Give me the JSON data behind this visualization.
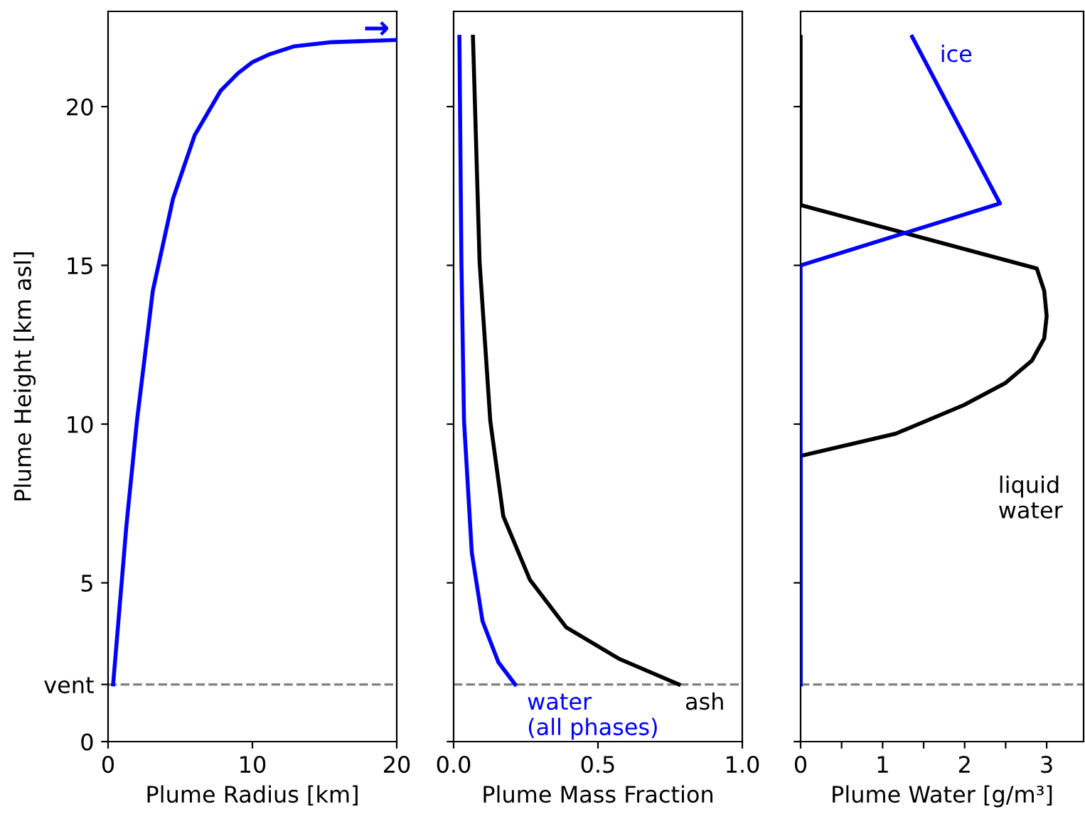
{
  "chart_data": [
    {
      "type": "line",
      "xlabel": "Plume Radius [km]",
      "ylabel": "Plume Height [km asl]",
      "xlim": [
        0,
        20
      ],
      "xticks": [
        0,
        10,
        20
      ],
      "ylim": [
        0,
        23
      ],
      "yticks": [
        0,
        {
          "value": 1.8,
          "label": "vent"
        },
        5,
        10,
        15,
        20
      ],
      "grid": false,
      "legend": false,
      "series": [
        {
          "color": "#0000ff",
          "x": [
            0.35,
            1.27,
            2.0,
            3.1,
            4.5,
            6.0,
            7.8,
            9.0,
            10.0,
            11.2,
            12.9,
            15.5,
            20.0
          ],
          "values": [
            1.8,
            6.8,
            10.1,
            14.2,
            17.1,
            19.1,
            20.5,
            21.05,
            21.4,
            21.65,
            21.9,
            22.03,
            22.1
          ]
        }
      ],
      "annotations": [
        "→"
      ],
      "ref_lines": [
        {
          "axis": "y",
          "value": 1.8,
          "color": "#808080",
          "line_style": "dashed"
        }
      ]
    },
    {
      "type": "line",
      "xlabel": "Plume Mass Fraction",
      "xlim": [
        0,
        1.0
      ],
      "xticks": [
        {
          "value": 0,
          "label": "0.0"
        },
        0.5,
        {
          "value": 1,
          "label": "1.0"
        }
      ],
      "ylim": [
        0,
        23
      ],
      "yticks": [
        0,
        5,
        10,
        15,
        20
      ],
      "tick_labels": "x",
      "grid": false,
      "legend": false,
      "series": [
        {
          "name": "water\n(all phases)",
          "color": "#0000ff",
          "x": [
            0.213,
            0.155,
            0.1,
            0.063,
            0.036,
            0.027,
            0.02
          ],
          "values": [
            1.8,
            2.5,
            3.8,
            5.95,
            10.1,
            15.1,
            22.2
          ]
        },
        {
          "name": "ash",
          "color": "#000000",
          "x": [
            0.78,
            0.575,
            0.39,
            0.264,
            0.172,
            0.127,
            0.09,
            0.067
          ],
          "values": [
            1.8,
            2.6,
            3.6,
            5.1,
            7.1,
            10.1,
            15.1,
            22.2
          ]
        }
      ],
      "ref_lines": [
        {
          "axis": "y",
          "value": 1.8,
          "color": "#808080",
          "line_style": "dashed"
        }
      ]
    },
    {
      "type": "line",
      "xlabel": "Plume Water [g/m³]",
      "xlim": [
        0,
        3.45
      ],
      "xticks": [
        0,
        {
          "value": 0.5,
          "label": null
        },
        1,
        {
          "value": 1.5,
          "label": null
        },
        2,
        {
          "value": 2.5,
          "label": null
        },
        3
      ],
      "ylim": [
        0,
        23
      ],
      "yticks": [
        0,
        5,
        10,
        15,
        20
      ],
      "tick_labels": "x",
      "grid": false,
      "legend": false,
      "series": [
        {
          "name": "liquid\nwater",
          "color": "#000000",
          "x": [
            0,
            0,
            1.16,
            1.99,
            2.5,
            2.82,
            2.97,
            3.0,
            2.97,
            2.88,
            0,
            0
          ],
          "values": [
            1.8,
            9.0,
            9.7,
            10.6,
            11.3,
            12.0,
            12.7,
            13.4,
            14.2,
            14.9,
            16.9,
            22.2
          ]
        },
        {
          "name": "ice",
          "color": "#0000ff",
          "x": [
            0,
            0,
            2.43,
            1.36
          ],
          "values": [
            1.8,
            15.0,
            16.95,
            22.2
          ]
        }
      ],
      "ref_lines": [
        {
          "axis": "y",
          "value": 1.8,
          "color": "#808080",
          "line_style": "dashed"
        }
      ]
    }
  ]
}
